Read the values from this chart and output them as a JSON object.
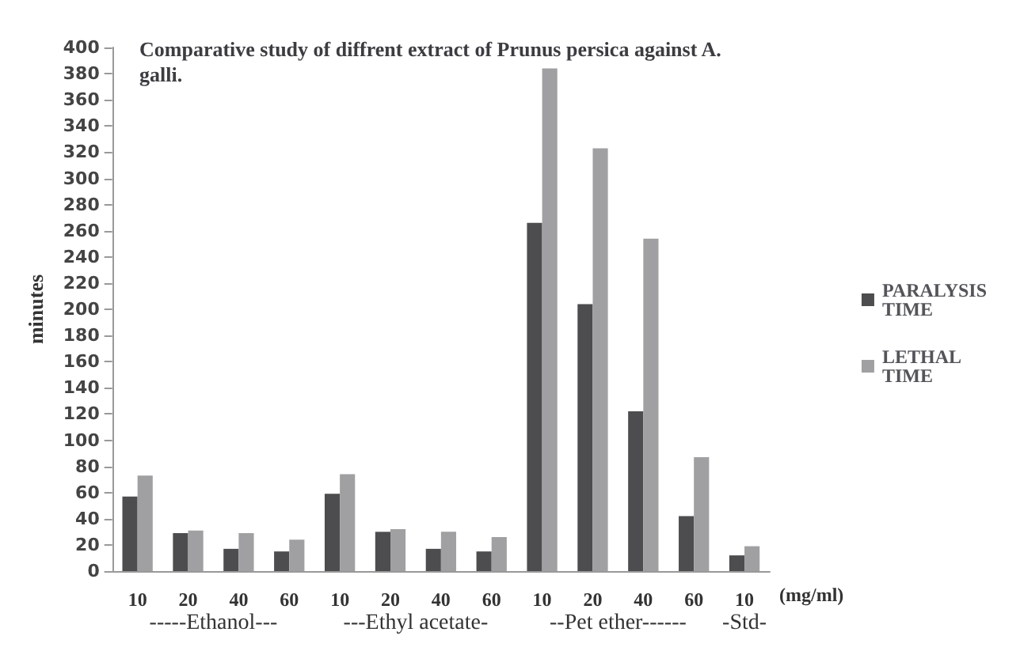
{
  "chart_data": {
    "type": "bar",
    "title": "Comparative study of diffrent extract of Prunus persica against A. galli.",
    "ylabel": "minutes",
    "xlabel": "(mg/ml)",
    "categories": [
      "10",
      "20",
      "40",
      "60",
      "10",
      "20",
      "40",
      "60",
      "10",
      "20",
      "40",
      "60",
      "10"
    ],
    "series": [
      {
        "name": "PARALYSIS TIME",
        "color": "#4d4d4f",
        "values": [
          57,
          29,
          17,
          15,
          59,
          30,
          17,
          15,
          266,
          204,
          122,
          42,
          12
        ]
      },
      {
        "name": "LETHAL TIME",
        "color": "#a0a0a2",
        "values": [
          73,
          31,
          29,
          24,
          74,
          32,
          30,
          26,
          384,
          323,
          254,
          87,
          19
        ]
      }
    ],
    "annotations": [
      "-----Ethanol---",
      "---Ethyl acetate-",
      "--Pet ether------",
      "-Std-"
    ],
    "ylim": [
      0,
      400
    ],
    "yticks": [
      0,
      20,
      40,
      60,
      80,
      100,
      120,
      140,
      160,
      180,
      200,
      220,
      240,
      260,
      280,
      300,
      320,
      340,
      360,
      380,
      400
    ],
    "grid": false,
    "legend": "right"
  }
}
